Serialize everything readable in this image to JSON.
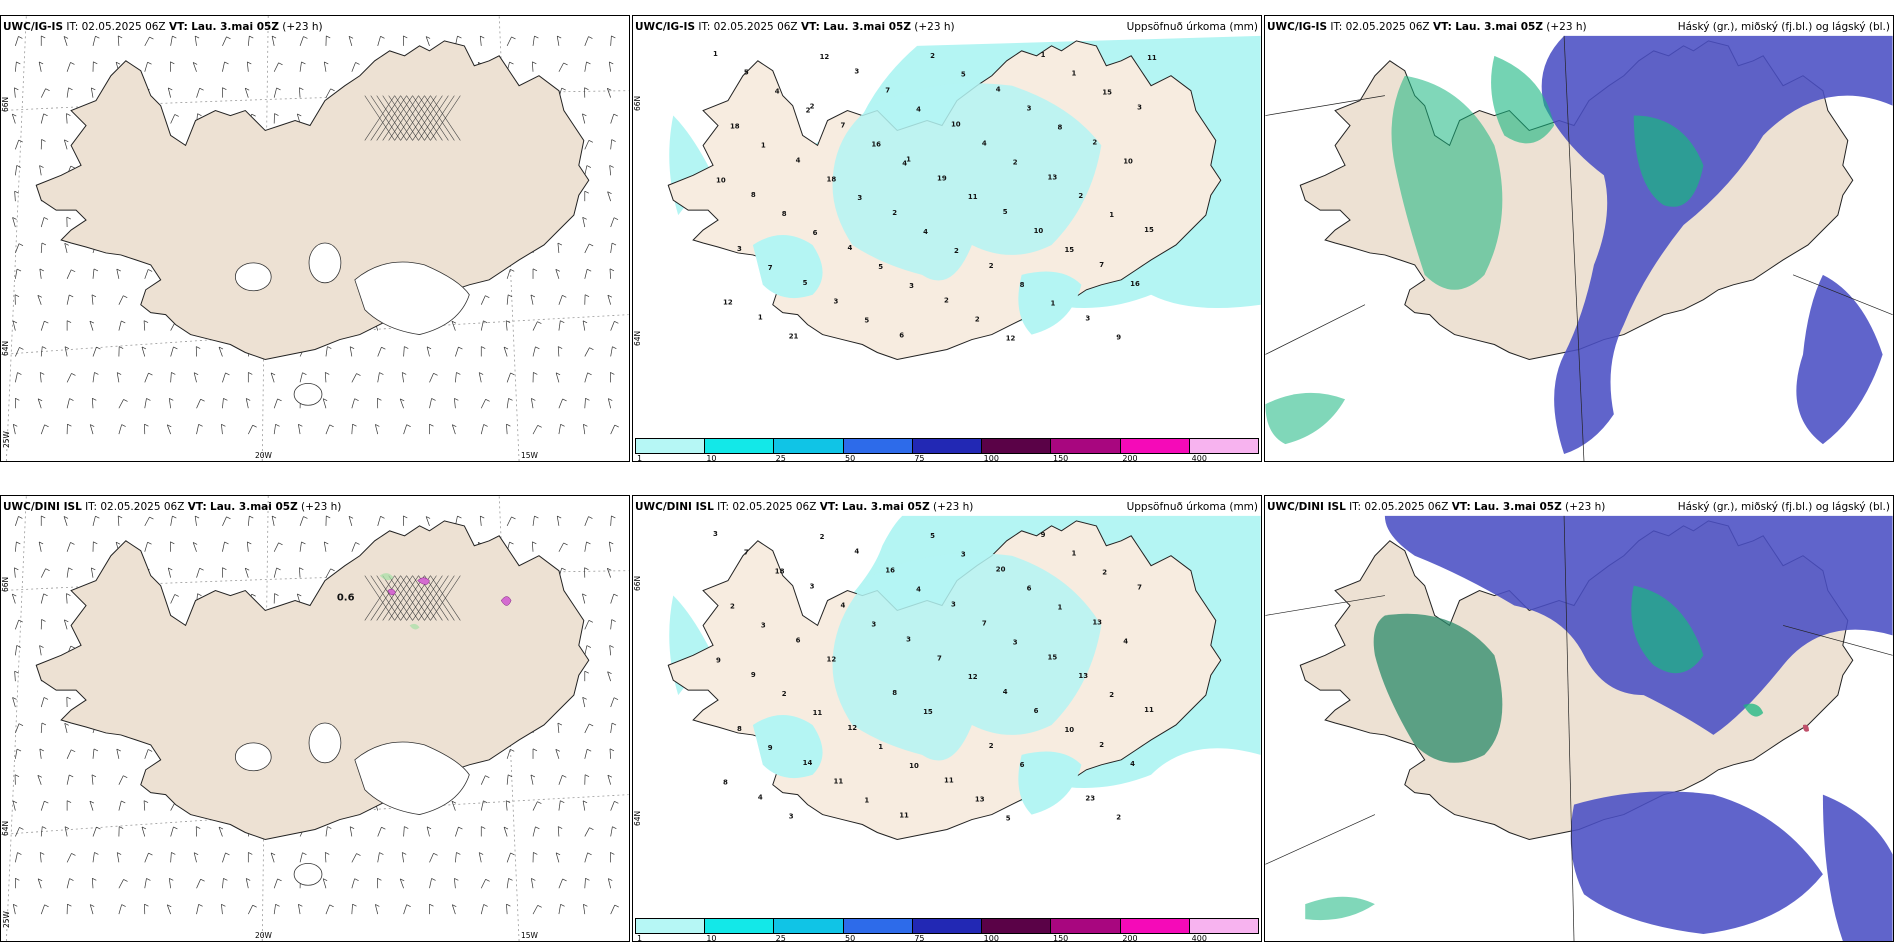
{
  "panels": {
    "p1": {
      "model": "UWC/IG-IS",
      "it_label": "IT:",
      "it": "02.05.2025 06Z",
      "vt_label": "VT:",
      "vt": "Lau. 3.mai 05Z",
      "lead": "(+23 h)"
    },
    "p2": {
      "model": "UWC/IG-IS",
      "it_label": "IT:",
      "it": "02.05.2025 06Z",
      "vt_label": "VT:",
      "vt": "Lau. 3.mai 05Z",
      "lead": "(+23 h)",
      "right_title": "Uppsöfnuð úrkoma (mm)"
    },
    "p3": {
      "model": "UWC/IG-IS",
      "it_label": "IT:",
      "it": "02.05.2025 06Z",
      "vt_label": "VT:",
      "vt": "Lau. 3.mai 05Z",
      "lead": "(+23 h)",
      "right_title": "Háský (gr.), miðský (fj.bl.) og lágský (bl.)"
    },
    "p4": {
      "model": "UWC/DINI ISL",
      "it_label": "IT:",
      "it": "02.05.2025 06Z",
      "vt_label": "VT:",
      "vt": "Lau. 3.mai 05Z",
      "lead": "(+23 h)"
    },
    "p5": {
      "model": "UWC/DINI ISL",
      "it_label": "IT:",
      "it": "02.05.2025 06Z",
      "vt_label": "VT:",
      "vt": "Lau. 3.mai 05Z",
      "lead": "(+23 h)",
      "right_title": "Uppsöfnuð úrkoma (mm)"
    },
    "p6": {
      "model": "UWC/DINI ISL",
      "it_label": "IT:",
      "it": "02.05.2025 06Z",
      "vt_label": "VT:",
      "vt": "Lau. 3.mai 05Z",
      "lead": "(+23 h)",
      "right_title": "Háský (gr.), miðský (fj.bl.) og lágský (bl.)"
    }
  },
  "axes": {
    "lat_66": "66N",
    "lat_64": "64N",
    "lon_25": "25W",
    "lon_20": "20W",
    "lon_15": "15W"
  },
  "p4_label": "0.6",
  "colorbar": {
    "labels": [
      "1",
      "10",
      "25",
      "50",
      "75",
      "100",
      "150",
      "200",
      "400"
    ],
    "colors": [
      "#b6f7f5",
      "#13e8e8",
      "#10c4e6",
      "#2d6bea",
      "#2228b4",
      "#5a0247",
      "#a8067f",
      "#f50ab8",
      "#f7b3ef"
    ]
  },
  "precip_values": {
    "p2": [
      "1",
      "2",
      "1",
      "5",
      "7",
      "1",
      "3",
      "10",
      "13",
      "15",
      "5",
      "6",
      "4",
      "2",
      "8",
      "4",
      "2",
      "1",
      "3",
      "4",
      "2",
      "2",
      "3",
      "5",
      "7",
      "19",
      "10",
      "16",
      "21",
      "7",
      "4",
      "2",
      "3",
      "3",
      "2",
      "3",
      "10",
      "8",
      "5",
      "2",
      "1",
      "18",
      "18",
      "4",
      "8",
      "9",
      "4",
      "16",
      "11",
      "15",
      "12",
      "12",
      "4",
      "2",
      "1",
      "7",
      "5",
      "5",
      "8",
      "10",
      "6",
      "3",
      "12",
      "15",
      "1",
      "3",
      "2",
      "1",
      "11",
      "2",
      "4"
    ],
    "p5": [
      "3",
      "3",
      "3",
      "4",
      "2",
      "4",
      "4",
      "3",
      "15",
      "11",
      "14",
      "11",
      "20",
      "13",
      "9",
      "12",
      "11",
      "9",
      "7",
      "6",
      "8",
      "2",
      "23",
      "7",
      "4",
      "7",
      "6",
      "4",
      "3",
      "16",
      "7",
      "13",
      "8",
      "11",
      "5",
      "6",
      "4",
      "2",
      "1",
      "13",
      "1",
      "2",
      "12",
      "15",
      "6",
      "2",
      "18",
      "3",
      "12",
      "10",
      "8",
      "2",
      "4",
      "3",
      "2",
      "9",
      "1",
      "3",
      "1",
      "9",
      "11",
      "10",
      "5",
      "2",
      "3"
    ]
  },
  "colors": {
    "land": "#ede1d3",
    "precip": "#b4f5f3",
    "high_cloud": "#4a4fc4",
    "mid_cloud": "#18b680",
    "low_cloud": "#7fd9e8"
  }
}
